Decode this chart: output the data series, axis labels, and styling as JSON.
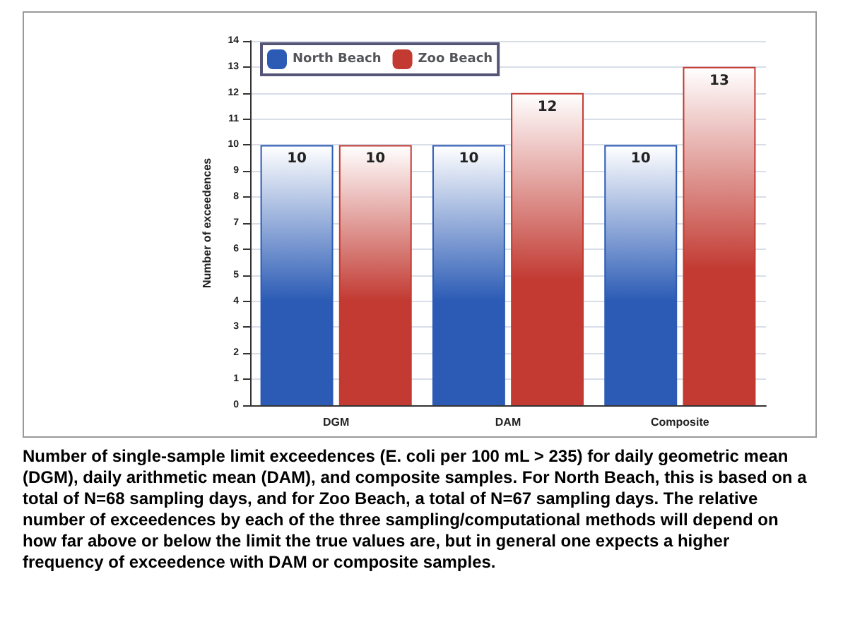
{
  "chart_data": {
    "type": "bar",
    "ylabel": "Number of exceedences",
    "categories": [
      "DGM",
      "DAM",
      "Composite"
    ],
    "series": [
      {
        "name": "North Beach",
        "color": "#2b5bb5",
        "values": [
          10,
          10,
          10
        ]
      },
      {
        "name": "Zoo Beach",
        "color": "#c23a32",
        "values": [
          10,
          12,
          13
        ]
      }
    ],
    "ylim": [
      0,
      14
    ],
    "yticks": [
      0,
      1,
      2,
      3,
      4,
      5,
      6,
      7,
      8,
      9,
      10,
      11,
      12,
      13,
      14
    ],
    "grid": "y",
    "legend": "top left",
    "data_labels": true,
    "annotations": [
      "Number of single-sample limit exceedences (E. coli per 100 mL > 235) for daily geometric mean (DGM), daily arithmetic mean (DAM), and composite samples. For North Beach, this is based on a total of N=68 sampling days, and for Zoo Beach, a total of N=67 sampling days.  The relative number of exceedences by each of the three sampling/computational methods will depend on how far above or below the limit the true values are, but in general one expects a higher frequency of exceedence with DAM or composite samples."
    ]
  }
}
